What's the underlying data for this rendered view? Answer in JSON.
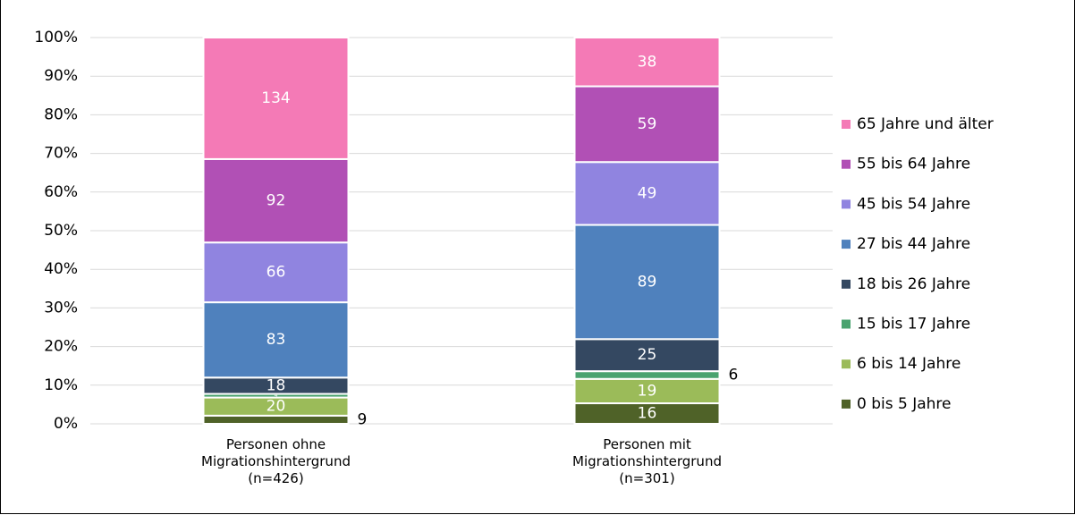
{
  "chart_data": {
    "type": "bar",
    "stack": "percent",
    "categories": [
      "Personen ohne\nMigrationshintergrund\n(n=426)",
      "Personen mit\nMigrationshintergrund\n(n=301)"
    ],
    "series": [
      {
        "name": "0 bis 5 Jahre",
        "color": "#4f6228",
        "values": [
          9,
          16
        ]
      },
      {
        "name": "6 bis 14 Jahre",
        "color": "#9bbb59",
        "values": [
          20,
          19
        ]
      },
      {
        "name": "15 bis 17 Jahre",
        "color": "#4aa36f",
        "values": [
          4,
          6
        ]
      },
      {
        "name": "18 bis 26 Jahre",
        "color": "#344861",
        "values": [
          18,
          25
        ]
      },
      {
        "name": "27 bis 44 Jahre",
        "color": "#4f81bd",
        "values": [
          83,
          89
        ]
      },
      {
        "name": "45 bis 54 Jahre",
        "color": "#9084e0",
        "values": [
          66,
          49
        ]
      },
      {
        "name": "55 bis 64 Jahre",
        "color": "#b150b5",
        "values": [
          92,
          59
        ]
      },
      {
        "name": "65 Jahre und älter",
        "color": "#f47ab6",
        "values": [
          134,
          38
        ]
      }
    ],
    "ylim": [
      0,
      100
    ],
    "yticks": [
      {
        "value": 0,
        "label": "0%"
      },
      {
        "value": 10,
        "label": "10%"
      },
      {
        "value": 20,
        "label": "20%"
      },
      {
        "value": 30,
        "label": "30%"
      },
      {
        "value": 40,
        "label": "40%"
      },
      {
        "value": 50,
        "label": "50%"
      },
      {
        "value": 60,
        "label": "60%"
      },
      {
        "value": 70,
        "label": "70%"
      },
      {
        "value": 80,
        "label": "80%"
      },
      {
        "value": 90,
        "label": "90%"
      },
      {
        "value": 100,
        "label": "100%"
      }
    ],
    "grid": true,
    "legend": "right"
  }
}
